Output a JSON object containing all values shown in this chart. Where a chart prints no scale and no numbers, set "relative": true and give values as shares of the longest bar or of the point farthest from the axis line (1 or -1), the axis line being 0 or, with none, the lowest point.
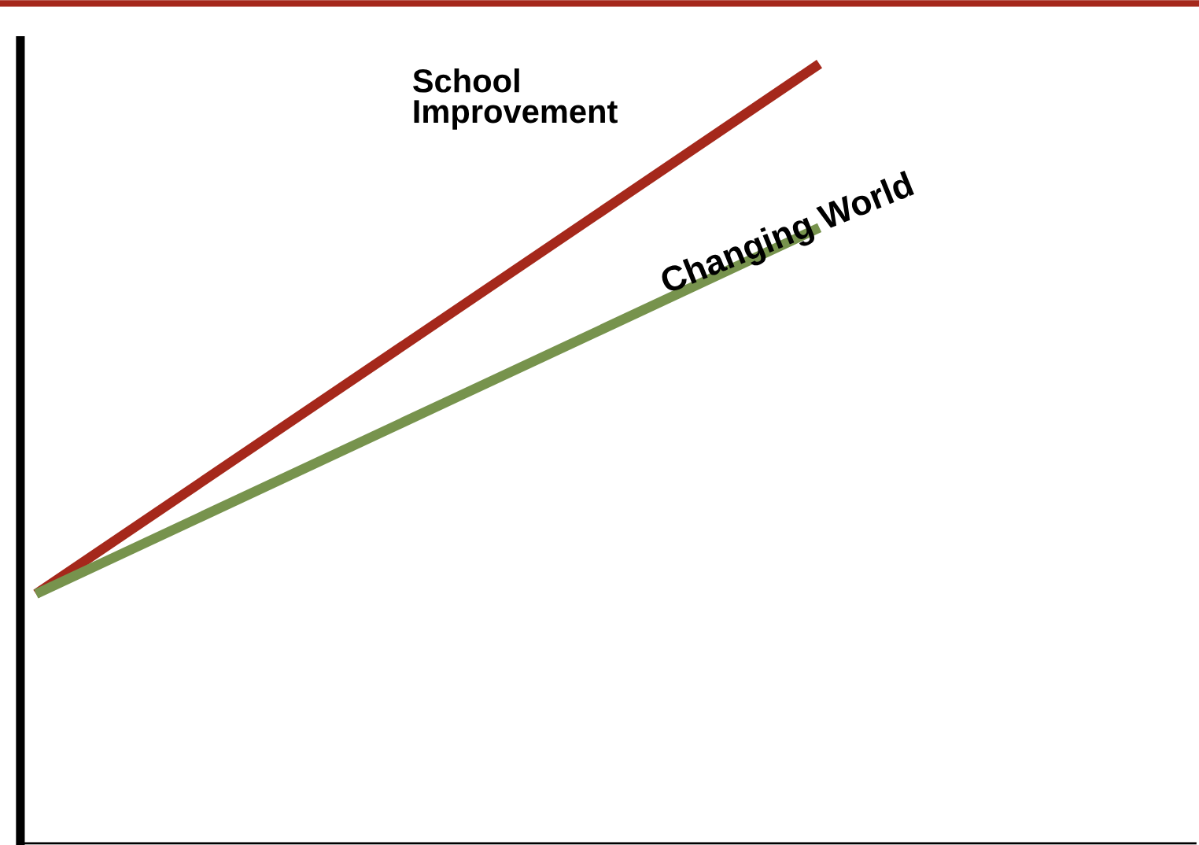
{
  "chart_data": {
    "type": "line",
    "relative": true,
    "categories": [
      null,
      null
    ],
    "legend": false,
    "grid": false,
    "series": [
      {
        "name": "School Improvement",
        "color": "#a5281b",
        "values": [
          0.32,
          1
        ]
      },
      {
        "name": "Changing World",
        "color": "#77934d",
        "values": [
          0.32,
          0.79
        ]
      }
    ]
  }
}
